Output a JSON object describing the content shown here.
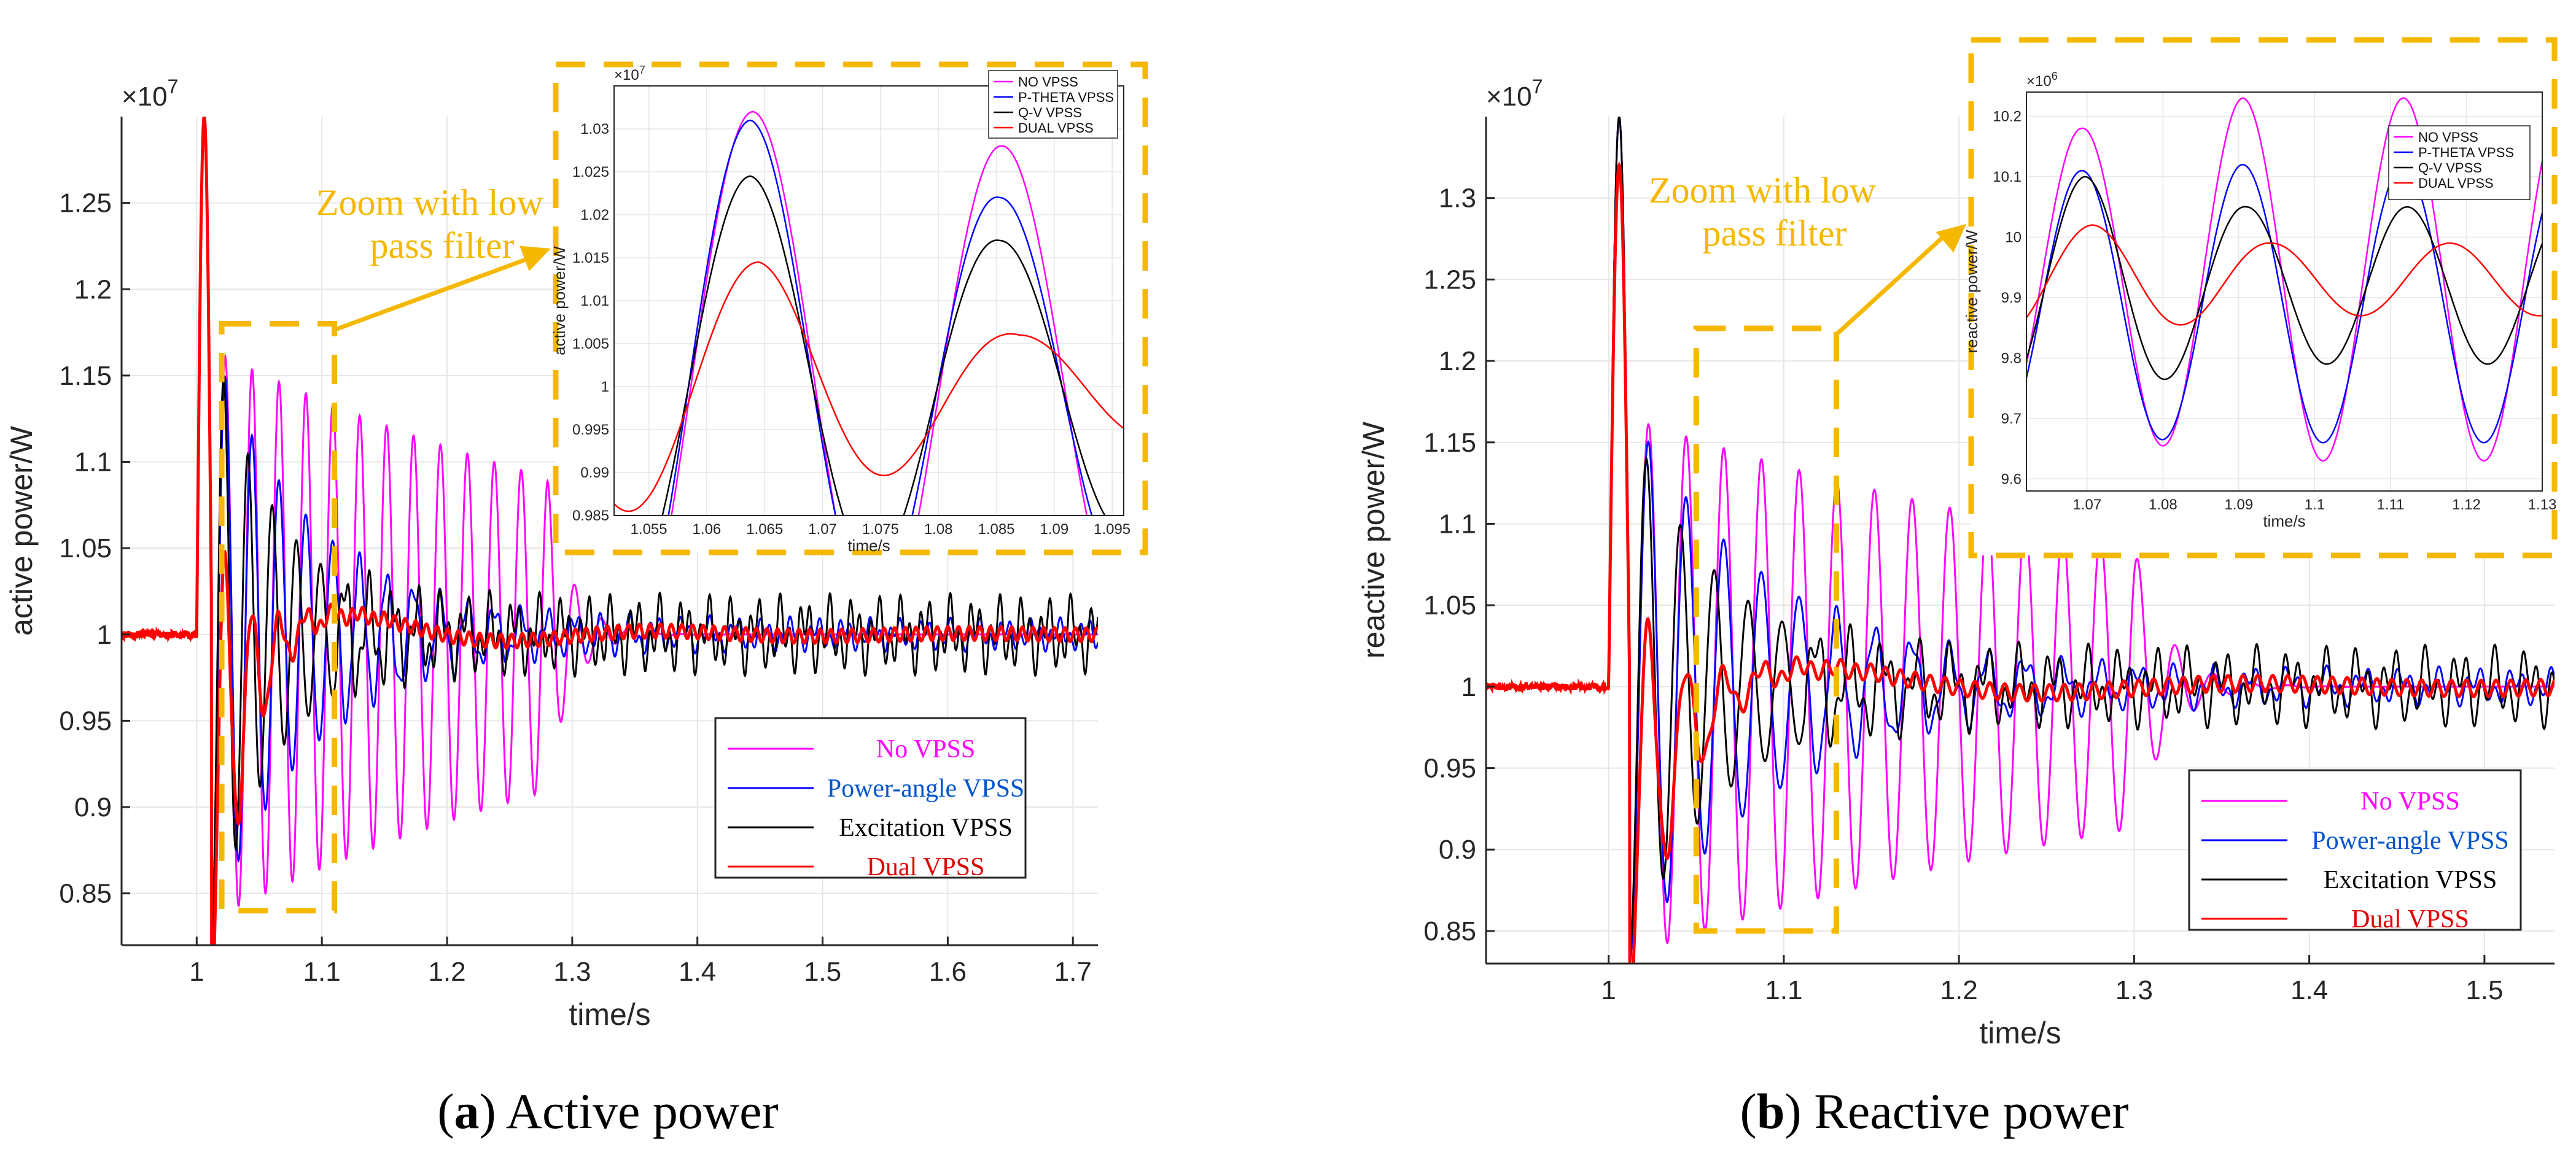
{
  "panels": [
    {
      "id": "a",
      "caption_letter": "a",
      "caption_text": "Active power",
      "callout_lines": [
        "Zoom with low",
        "pass filter"
      ],
      "legend_entries": [
        "No VPSS",
        "Power-angle VPSS",
        "Excitation VPSS",
        "Dual VPSS"
      ],
      "legend_colors": [
        "#ff00ff",
        "#0055cc",
        "#000000",
        "#e00000"
      ],
      "inset_legend_entries": [
        "NO VPSS",
        "P-THETA VPSS",
        "Q-V VPSS",
        "DUAL VPSS"
      ]
    },
    {
      "id": "b",
      "caption_letter": "b",
      "caption_text": "Reactive power",
      "callout_lines": [
        "Zoom with low",
        "pass filter"
      ],
      "legend_entries": [
        "No VPSS",
        "Power-angle VPSS",
        "Excitation VPSS",
        "Dual VPSS"
      ],
      "legend_colors": [
        "#ff00ff",
        "#0055cc",
        "#000000",
        "#e00000"
      ],
      "inset_legend_entries": [
        "NO VPSS",
        "P-THETA VPSS",
        "Q-V VPSS",
        "DUAL VPSS"
      ]
    }
  ],
  "colors": {
    "no_vpss": "#ff00ff",
    "power_angle_vpss": "#0000ff",
    "excitation_vpss": "#000000",
    "dual_vpss": "#ff0000",
    "zoom_box": "#f5b800"
  },
  "chart_data": [
    {
      "type": "line",
      "title": "",
      "xlabel": "time/s",
      "ylabel": "active power/W",
      "y_multiplier": "×10^7",
      "xlim": [
        0.94,
        1.72
      ],
      "ylim": [
        0.82,
        1.3
      ],
      "xticks": [
        1,
        1.1,
        1.2,
        1.3,
        1.4,
        1.5,
        1.6,
        1.7
      ],
      "yticks": [
        0.85,
        0.9,
        0.95,
        1,
        1.05,
        1.1,
        1.15,
        1.2,
        1.25
      ],
      "grid": true,
      "legend_position": "bottom-right",
      "zoom_region": {
        "x": [
          1.02,
          1.11
        ],
        "y": [
          0.84,
          1.18
        ]
      },
      "series": [
        {
          "name": "No VPSS",
          "baseline": 1.0,
          "disturbance_time": 1.0,
          "peak": 1.3,
          "trough": 0.85,
          "oscillation_period": 0.0215,
          "decay_tau": 0.45,
          "settle_time": 1.28,
          "steady_ripple": 0.0
        },
        {
          "name": "Power-angle VPSS",
          "baseline": 1.0,
          "disturbance_time": 1.0,
          "peak": 1.3,
          "trough": 0.85,
          "oscillation_period": 0.0215,
          "decay_tau": 0.08,
          "settle_time": 1.25,
          "steady_ripple": 0.005
        },
        {
          "name": "Excitation VPSS",
          "baseline": 1.0,
          "disturbance_time": 1.0,
          "peak": 1.3,
          "trough": 0.85,
          "oscillation_period": 0.0215,
          "decay_tau": 0.05,
          "settle_time": 1.2,
          "steady_ripple": 0.012
        },
        {
          "name": "Dual VPSS",
          "baseline": 1.0,
          "disturbance_time": 1.0,
          "peak": 1.3,
          "trough": 0.86,
          "oscillation_period": 0.0215,
          "decay_tau": 0.025,
          "settle_time": 1.16,
          "steady_ripple": 0.004
        }
      ]
    },
    {
      "type": "line",
      "title": "",
      "xlabel": "time/s",
      "ylabel": "active power/W",
      "y_multiplier": "×10^7",
      "xlim": [
        1.052,
        1.096
      ],
      "ylim": [
        0.985,
        1.035
      ],
      "xticks": [
        1.055,
        1.06,
        1.065,
        1.07,
        1.075,
        1.08,
        1.085,
        1.09,
        1.095
      ],
      "yticks": [
        0.985,
        0.99,
        0.995,
        1,
        1.005,
        1.01,
        1.015,
        1.02,
        1.025,
        1.03
      ],
      "grid": true,
      "legend_position": "top-right",
      "series": [
        {
          "name": "NO VPSS",
          "center": 1.0,
          "amplitude": [
            0.032,
            0.028
          ],
          "period": 0.0215,
          "peak_time": 1.064
        },
        {
          "name": "P-THETA VPSS",
          "center": 1.0,
          "amplitude": [
            0.031,
            0.022
          ],
          "period": 0.0215,
          "peak_time": 1.0638
        },
        {
          "name": "Q-V VPSS",
          "center": 1.0,
          "amplitude": [
            0.0245,
            0.017
          ],
          "period": 0.0215,
          "peak_time": 1.0638
        },
        {
          "name": "DUAL VPSS",
          "center": 1.0,
          "amplitude": [
            0.0145,
            0.006
          ],
          "period": 0.0225,
          "peak_time": 1.0645
        }
      ]
    },
    {
      "type": "line",
      "title": "",
      "xlabel": "time/s",
      "ylabel": "reactive power/W",
      "y_multiplier": "×10^7",
      "xlim": [
        0.93,
        1.54
      ],
      "ylim": [
        0.83,
        1.35
      ],
      "xticks": [
        1,
        1.1,
        1.2,
        1.3,
        1.4,
        1.5
      ],
      "yticks": [
        0.85,
        0.9,
        0.95,
        1,
        1.05,
        1.1,
        1.15,
        1.2,
        1.25,
        1.3
      ],
      "grid": true,
      "legend_position": "bottom-right",
      "zoom_region": {
        "x": [
          1.05,
          1.13
        ],
        "y": [
          0.85,
          1.22
        ]
      },
      "series": [
        {
          "name": "No VPSS",
          "baseline": 1.0,
          "disturbance_time": 1.0,
          "peak": 1.35,
          "trough": 0.85,
          "oscillation_period": 0.0215,
          "decay_tau": 0.45,
          "settle_time": 1.3,
          "steady_ripple": 0.0
        },
        {
          "name": "Power-angle VPSS",
          "baseline": 1.0,
          "disturbance_time": 1.0,
          "peak": 1.35,
          "trough": 0.85,
          "oscillation_period": 0.0215,
          "decay_tau": 0.08,
          "settle_time": 1.25,
          "steady_ripple": 0.006
        },
        {
          "name": "Excitation VPSS",
          "baseline": 1.0,
          "disturbance_time": 1.0,
          "peak": 1.35,
          "trough": 0.86,
          "oscillation_period": 0.0215,
          "decay_tau": 0.05,
          "settle_time": 1.2,
          "steady_ripple": 0.013
        },
        {
          "name": "Dual VPSS",
          "baseline": 1.0,
          "disturbance_time": 1.0,
          "peak": 1.32,
          "trough": 0.87,
          "oscillation_period": 0.0215,
          "decay_tau": 0.025,
          "settle_time": 1.17,
          "steady_ripple": 0.005
        }
      ]
    },
    {
      "type": "line",
      "title": "",
      "xlabel": "time/s",
      "ylabel": "reactive power/W",
      "y_multiplier": "×10^6",
      "xlim": [
        1.062,
        1.13
      ],
      "ylim": [
        9.58,
        10.24
      ],
      "xticks": [
        1.07,
        1.08,
        1.09,
        1.1,
        1.11,
        1.12,
        1.13
      ],
      "yticks": [
        9.6,
        9.7,
        9.8,
        9.9,
        10,
        10.1,
        10.2
      ],
      "grid": true,
      "legend_position": "top-right",
      "series": [
        {
          "name": "NO VPSS",
          "center": 9.93,
          "amplitude": [
            0.25,
            0.3
          ],
          "period": 0.0212,
          "peak_time": 1.0693
        },
        {
          "name": "P-THETA VPSS",
          "center": 9.89,
          "amplitude": [
            0.22,
            0.23
          ],
          "period": 0.0212,
          "peak_time": 1.0693
        },
        {
          "name": "Q-V VPSS",
          "center": 9.92,
          "amplitude": [
            0.18,
            0.13
          ],
          "period": 0.0212,
          "peak_time": 1.0698
        },
        {
          "name": "DUAL VPSS",
          "center": 9.93,
          "amplitude": [
            0.09,
            0.06
          ],
          "period": 0.0235,
          "peak_time": 1.0708
        }
      ]
    }
  ]
}
